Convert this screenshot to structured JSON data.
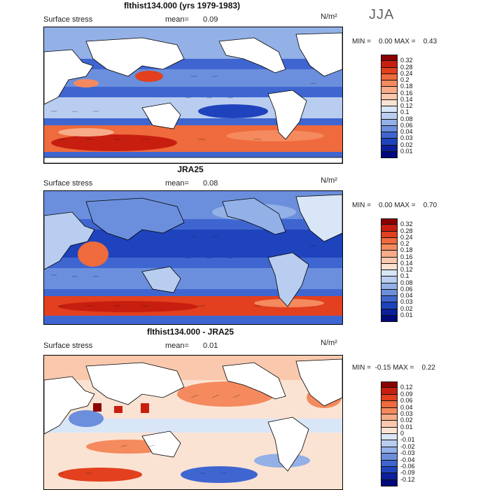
{
  "season": "JJA",
  "panels": [
    {
      "title": "flthist134.000 (yrs 1979-1983)",
      "field_label": "Surface stress",
      "mean_label": "mean=",
      "mean_value": "0.09",
      "units": "N/m²",
      "minmax": "MIN =    0.00 MAX =    0.43",
      "levels": [
        "0.32",
        "0.28",
        "0.24",
        "0.2",
        "0.18",
        "0.16",
        "0.14",
        "0.12",
        "0.1",
        "0.08",
        "0.06",
        "0.04",
        "0.03",
        "0.02",
        "0.01"
      ],
      "colors": [
        "#8b0000",
        "#c81e10",
        "#e2401e",
        "#ef6a3c",
        "#f48a5e",
        "#f7ab88",
        "#f9c8ad",
        "#fbe3d3",
        "#d9e6f7",
        "#b8cdf0",
        "#93b0e7",
        "#6b8fdc",
        "#3f66d0",
        "#1f43bc",
        "#0b1f9c",
        "#00087a"
      ]
    },
    {
      "title": "JRA25",
      "field_label": "Surface stress",
      "mean_label": "mean=",
      "mean_value": "0.08",
      "units": "N/m²",
      "minmax": "MIN =    0.00 MAX =    0.70",
      "levels": [
        "0.32",
        "0.28",
        "0.24",
        "0.2",
        "0.18",
        "0.16",
        "0.14",
        "0.12",
        "0.1",
        "0.08",
        "0.06",
        "0.04",
        "0.03",
        "0.02",
        "0.01"
      ],
      "colors": [
        "#8b0000",
        "#c81e10",
        "#e2401e",
        "#ef6a3c",
        "#f48a5e",
        "#f7ab88",
        "#f9c8ad",
        "#fbe3d3",
        "#d9e6f7",
        "#b8cdf0",
        "#93b0e7",
        "#6b8fdc",
        "#3f66d0",
        "#1f43bc",
        "#0b1f9c",
        "#00087a"
      ]
    },
    {
      "title": "flthist134.000 - JRA25",
      "field_label": "Surface stress",
      "mean_label": "mean=",
      "mean_value": "0.01",
      "units": "N/m²",
      "minmax": "MIN =  -0.15 MAX =    0.22",
      "levels": [
        "0.12",
        "0.09",
        "0.06",
        "0.04",
        "0.03",
        "0.02",
        "0.01",
        "0",
        "-0.01",
        "-0.02",
        "-0.03",
        "-0.04",
        "-0.06",
        "-0.09",
        "-0.12"
      ],
      "colors": [
        "#8b0000",
        "#c81e10",
        "#e2401e",
        "#ef6a3c",
        "#f48a5e",
        "#f7ab88",
        "#f9c8ad",
        "#fbe3d3",
        "#d9e6f7",
        "#b8cdf0",
        "#93b0e7",
        "#6b8fdc",
        "#3f66d0",
        "#1f43bc",
        "#0b1f9c",
        "#00087a"
      ]
    }
  ]
}
